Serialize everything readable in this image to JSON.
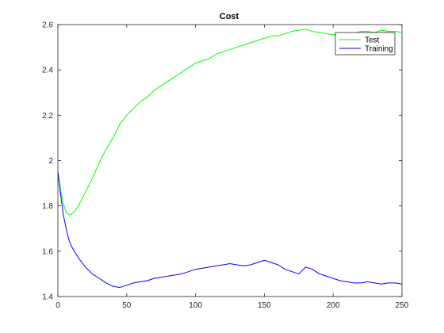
{
  "chart_data": {
    "type": "line",
    "title": "Cost",
    "xlabel": "",
    "ylabel": "",
    "xlim": [
      0,
      250
    ],
    "ylim": [
      1.4,
      2.6
    ],
    "xticks": [
      0,
      50,
      100,
      150,
      200,
      250
    ],
    "yticks": [
      1.4,
      1.6,
      1.8,
      2.0,
      2.2,
      2.4,
      2.6
    ],
    "xtick_labels": [
      "0",
      "50",
      "100",
      "150",
      "200",
      "250"
    ],
    "ytick_labels": [
      "1.4",
      "1.6",
      "1.8",
      "2",
      "2.2",
      "2.4",
      "2.6"
    ],
    "grid": false,
    "legend": {
      "placement": "top-right"
    },
    "series": [
      {
        "name": "Test",
        "color": "#00ff00",
        "points": [
          [
            0,
            1.95
          ],
          [
            2,
            1.87
          ],
          [
            4,
            1.81
          ],
          [
            6,
            1.77
          ],
          [
            8,
            1.76
          ],
          [
            10,
            1.765
          ],
          [
            12,
            1.775
          ],
          [
            15,
            1.8
          ],
          [
            20,
            1.86
          ],
          [
            25,
            1.92
          ],
          [
            30,
            1.99
          ],
          [
            35,
            2.05
          ],
          [
            40,
            2.1
          ],
          [
            45,
            2.16
          ],
          [
            50,
            2.2
          ],
          [
            55,
            2.23
          ],
          [
            60,
            2.26
          ],
          [
            65,
            2.28
          ],
          [
            70,
            2.31
          ],
          [
            75,
            2.33
          ],
          [
            80,
            2.35
          ],
          [
            85,
            2.37
          ],
          [
            90,
            2.39
          ],
          [
            95,
            2.41
          ],
          [
            100,
            2.43
          ],
          [
            105,
            2.44
          ],
          [
            110,
            2.45
          ],
          [
            115,
            2.47
          ],
          [
            120,
            2.48
          ],
          [
            125,
            2.49
          ],
          [
            130,
            2.5
          ],
          [
            135,
            2.51
          ],
          [
            140,
            2.52
          ],
          [
            145,
            2.53
          ],
          [
            150,
            2.54
          ],
          [
            155,
            2.55
          ],
          [
            160,
            2.55
          ],
          [
            165,
            2.56
          ],
          [
            170,
            2.57
          ],
          [
            175,
            2.575
          ],
          [
            180,
            2.58
          ],
          [
            185,
            2.57
          ],
          [
            190,
            2.565
          ],
          [
            195,
            2.56
          ],
          [
            200,
            2.555
          ],
          [
            205,
            2.56
          ],
          [
            210,
            2.555
          ],
          [
            215,
            2.56
          ],
          [
            220,
            2.57
          ],
          [
            225,
            2.57
          ],
          [
            230,
            2.565
          ],
          [
            235,
            2.575
          ],
          [
            240,
            2.57
          ],
          [
            245,
            2.57
          ],
          [
            250,
            2.565
          ]
        ]
      },
      {
        "name": "Training",
        "color": "#0000ff",
        "points": [
          [
            0,
            1.95
          ],
          [
            2,
            1.85
          ],
          [
            4,
            1.76
          ],
          [
            6,
            1.7
          ],
          [
            8,
            1.65
          ],
          [
            10,
            1.62
          ],
          [
            15,
            1.57
          ],
          [
            20,
            1.53
          ],
          [
            25,
            1.5
          ],
          [
            30,
            1.48
          ],
          [
            35,
            1.46
          ],
          [
            40,
            1.445
          ],
          [
            45,
            1.44
          ],
          [
            50,
            1.45
          ],
          [
            55,
            1.46
          ],
          [
            60,
            1.465
          ],
          [
            65,
            1.47
          ],
          [
            70,
            1.48
          ],
          [
            75,
            1.485
          ],
          [
            80,
            1.49
          ],
          [
            85,
            1.495
          ],
          [
            90,
            1.5
          ],
          [
            95,
            1.51
          ],
          [
            100,
            1.52
          ],
          [
            105,
            1.525
          ],
          [
            110,
            1.53
          ],
          [
            115,
            1.535
          ],
          [
            120,
            1.54
          ],
          [
            125,
            1.545
          ],
          [
            130,
            1.54
          ],
          [
            135,
            1.535
          ],
          [
            140,
            1.54
          ],
          [
            145,
            1.55
          ],
          [
            150,
            1.56
          ],
          [
            155,
            1.55
          ],
          [
            160,
            1.54
          ],
          [
            165,
            1.52
          ],
          [
            170,
            1.51
          ],
          [
            175,
            1.5
          ],
          [
            180,
            1.53
          ],
          [
            185,
            1.52
          ],
          [
            190,
            1.5
          ],
          [
            195,
            1.49
          ],
          [
            200,
            1.48
          ],
          [
            205,
            1.47
          ],
          [
            210,
            1.465
          ],
          [
            215,
            1.46
          ],
          [
            220,
            1.46
          ],
          [
            225,
            1.465
          ],
          [
            230,
            1.46
          ],
          [
            235,
            1.455
          ],
          [
            240,
            1.46
          ],
          [
            245,
            1.46
          ],
          [
            250,
            1.455
          ]
        ]
      }
    ]
  }
}
